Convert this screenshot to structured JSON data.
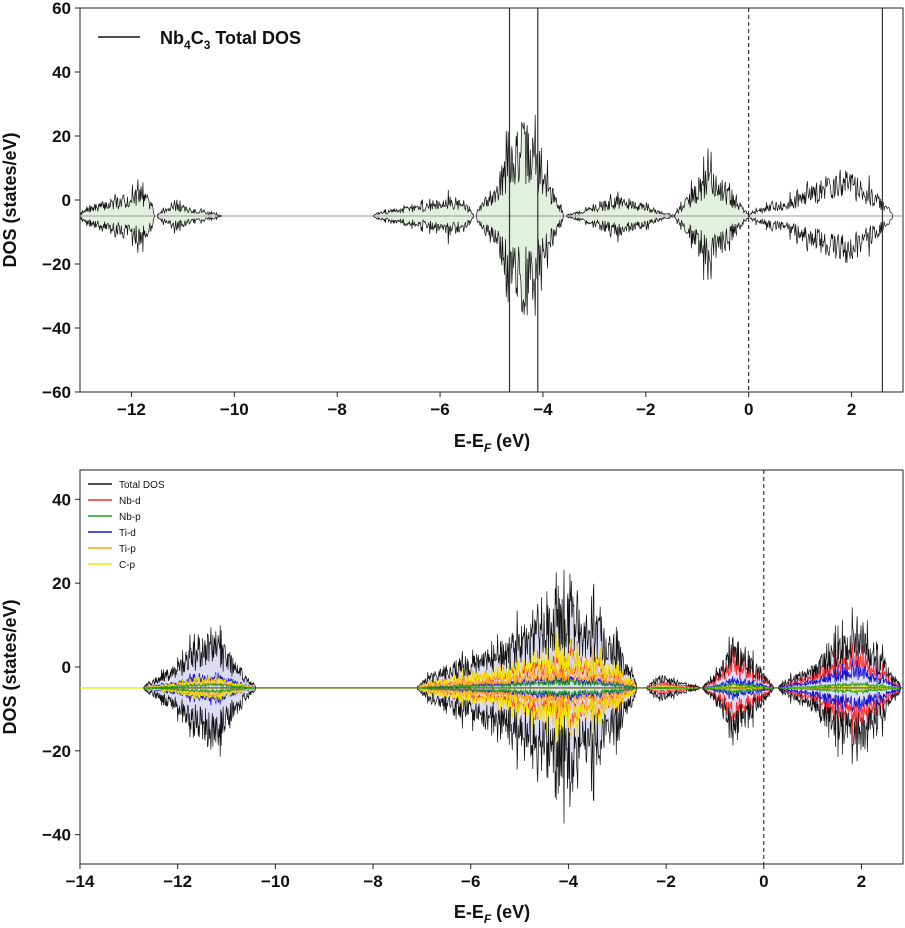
{
  "chart_data": [
    {
      "type": "area",
      "xlabel": "E-E_F (eV)",
      "xlabel_parts": {
        "base": "E-E",
        "sub": "F",
        "tail": " (eV)"
      },
      "ylabel": "DOS (states/eV)",
      "xlim": [
        -13,
        3
      ],
      "ylim": [
        -60,
        60
      ],
      "baseline": -5,
      "xticks": [
        -12,
        -10,
        -8,
        -6,
        -4,
        -2,
        0,
        2
      ],
      "yticks": [
        -60,
        -40,
        -20,
        0,
        20,
        40,
        60
      ],
      "legend_position": "top-left",
      "grid": false,
      "fermi_line_x": 0,
      "vertical_lines_x": [
        -4.65,
        -4.1,
        2.6
      ],
      "fill_color": "#e2f0df",
      "line_color": "#111111",
      "series": [
        {
          "name": "Nb4C3 Total DOS",
          "legend_parts": {
            "base": "Nb",
            "sub1": "4",
            "mid": "C",
            "sub2": "3",
            "tail": " Total DOS"
          },
          "bands": [
            {
              "x_start": -13.0,
              "x_end": -11.55,
              "peak": 20,
              "peak_x": -11.58
            },
            {
              "x_start": -11.5,
              "x_end": -10.25,
              "peak": 7,
              "peak_x": -11.3
            },
            {
              "x_start": -7.3,
              "x_end": -5.35,
              "peak": 12,
              "peak_x": -5.55
            },
            {
              "x_start": -5.3,
              "x_end": -3.6,
              "peak": 40,
              "peak_x": -4.35
            },
            {
              "x_start": -3.55,
              "x_end": -1.45,
              "peak": 8,
              "peak_x": -2.5
            },
            {
              "x_start": -1.45,
              "x_end": 0.0,
              "peak": 22,
              "peak_x": -0.75
            },
            {
              "x_start": 0.0,
              "x_end": 2.8,
              "peak": 22,
              "peak_x": 2.05
            }
          ]
        }
      ]
    },
    {
      "type": "area",
      "xlabel": "E-E_F (eV)",
      "xlabel_parts": {
        "base": "E-E",
        "sub": "F",
        "tail": " (eV)"
      },
      "ylabel": "DOS (states/eV)",
      "xlim": [
        -14,
        2.85
      ],
      "ylim": [
        -47,
        47
      ],
      "baseline": -5,
      "xticks": [
        -14,
        -12,
        -10,
        -8,
        -6,
        -4,
        -2,
        0,
        2
      ],
      "yticks": [
        -40,
        -20,
        0,
        20,
        40
      ],
      "legend_position": "top-left",
      "grid": false,
      "fermi_line_x": 0,
      "fill_color": "#dcdcf3",
      "series": [
        {
          "name": "Total DOS",
          "color": "#111111",
          "scale": 1.0
        },
        {
          "name": "Nb-d",
          "color": "#ff2a2a",
          "scale": 0.55
        },
        {
          "name": "Nb-p",
          "color": "#1e9e1e",
          "scale": 0.07
        },
        {
          "name": "Ti-d",
          "color": "#1515d6",
          "scale": 0.2
        },
        {
          "name": "Ti-p",
          "color": "#ff9f1c",
          "scale": 0.12
        },
        {
          "name": "C-p",
          "color": "#f2e600",
          "scale": 0.3
        }
      ],
      "bands": [
        {
          "x_start": -12.7,
          "x_end": -10.4,
          "peak": 18,
          "peak_x": -11.3,
          "mix": {
            "Nb-d": 0.2,
            "Ti-d": 0.25,
            "Ti-p": 0.1,
            "C-p": 0.2,
            "Nb-p": 0.08
          }
        },
        {
          "x_start": -7.1,
          "x_end": -2.6,
          "peak": 35,
          "peak_x": -3.6,
          "mix": {
            "Nb-d": 0.4,
            "Ti-d": 0.12,
            "Ti-p": 0.2,
            "C-p": 0.45,
            "Nb-p": 0.08
          }
        },
        {
          "x_start": -2.4,
          "x_end": -1.3,
          "peak": 5,
          "peak_x": -2.2,
          "mix": {
            "Nb-d": 0.5,
            "Ti-d": 0.2,
            "Ti-p": 0.1,
            "C-p": 0.2,
            "Nb-p": 0.06
          }
        },
        {
          "x_start": -1.25,
          "x_end": 0.2,
          "peak": 15,
          "peak_x": -0.5,
          "mix": {
            "Nb-d": 0.7,
            "Ti-d": 0.2,
            "Ti-p": 0.05,
            "C-p": 0.05,
            "Nb-p": 0.1
          }
        },
        {
          "x_start": 0.3,
          "x_end": 2.8,
          "peak": 21,
          "peak_x": 2.0,
          "mix": {
            "Nb-d": 0.6,
            "Ti-d": 0.35,
            "Ti-p": 0.05,
            "C-p": 0.05,
            "Nb-p": 0.08
          }
        }
      ]
    }
  ]
}
